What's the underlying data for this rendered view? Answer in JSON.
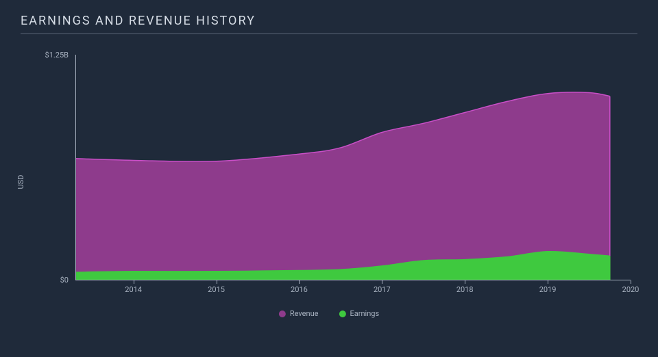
{
  "title": "EARNINGS AND REVENUE HISTORY",
  "background_color": "#1f2a3a",
  "text_color": "#a8b2c0",
  "title_color": "#d5dce5",
  "rule_color": "#5a6678",
  "axis_color": "#a8b2c0",
  "chart": {
    "type": "area",
    "y_label": "USD",
    "y_ticks": [
      {
        "value": 0,
        "label": "$0"
      },
      {
        "value": 1.25,
        "label": "$1.25B"
      }
    ],
    "ylim": [
      0,
      1.25
    ],
    "x_ticks": [
      "2014",
      "2015",
      "2016",
      "2017",
      "2018",
      "2019",
      "2020"
    ],
    "x_range": [
      2013.3,
      2020
    ],
    "series": [
      {
        "name": "Revenue",
        "fill": "#8e3b8c",
        "stroke": "#c94fc7",
        "points": [
          [
            2013.3,
            0.675
          ],
          [
            2014,
            0.665
          ],
          [
            2015,
            0.66
          ],
          [
            2016,
            0.7
          ],
          [
            2016.5,
            0.735
          ],
          [
            2017,
            0.82
          ],
          [
            2017.5,
            0.87
          ],
          [
            2018,
            0.93
          ],
          [
            2018.5,
            0.99
          ],
          [
            2019,
            1.035
          ],
          [
            2019.5,
            1.04
          ],
          [
            2019.75,
            1.02
          ]
        ]
      },
      {
        "name": "Earnings",
        "fill": "#3fc93f",
        "stroke": "#3fc93f",
        "points": [
          [
            2013.3,
            0.045
          ],
          [
            2014,
            0.05
          ],
          [
            2015,
            0.05
          ],
          [
            2016,
            0.055
          ],
          [
            2016.5,
            0.06
          ],
          [
            2017,
            0.08
          ],
          [
            2017.5,
            0.11
          ],
          [
            2018,
            0.115
          ],
          [
            2018.5,
            0.13
          ],
          [
            2019,
            0.16
          ],
          [
            2019.5,
            0.145
          ],
          [
            2019.75,
            0.135
          ]
        ]
      }
    ],
    "legend": [
      {
        "label": "Revenue",
        "color": "#8e3b8c"
      },
      {
        "label": "Earnings",
        "color": "#3fc93f"
      }
    ]
  }
}
